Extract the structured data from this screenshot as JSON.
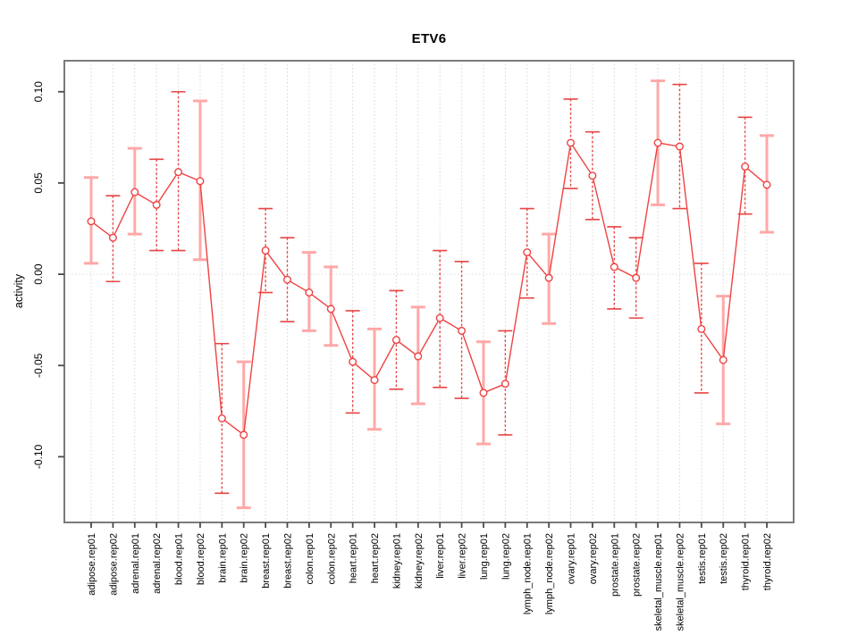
{
  "figure": {
    "title": "ETV6",
    "ylabel": "activity"
  },
  "chart_data": {
    "type": "scatter",
    "subtype": "points-with-error-bars",
    "title": "ETV6",
    "xlabel": "",
    "ylabel": "activity",
    "ylim": [
      -0.136,
      0.117
    ],
    "yticks": [
      -0.1,
      -0.05,
      0.0,
      0.05,
      0.1
    ],
    "ytick_labels": [
      "-0.10",
      "-0.05",
      "0.00",
      "0.05",
      "0.10"
    ],
    "grid": {
      "x_gridlines": "dotted",
      "zero_line": "dotted",
      "legend": "none"
    },
    "categories": [
      "adipose.rep01",
      "adipose.rep02",
      "adrenal.rep01",
      "adrenal.rep02",
      "blood.rep01",
      "blood.rep02",
      "brain.rep01",
      "brain.rep02",
      "breast.rep01",
      "breast.rep02",
      "colon.rep01",
      "colon.rep02",
      "heart.rep01",
      "heart.rep02",
      "kidney.rep01",
      "kidney.rep02",
      "liver.rep01",
      "liver.rep02",
      "lung.rep01",
      "lung.rep02",
      "lymph_node.rep01",
      "lymph_node.rep02",
      "ovary.rep01",
      "ovary.rep02",
      "prostate.rep01",
      "prostate.rep02",
      "skeletal_muscle.rep01",
      "skeletal_muscle.rep02",
      "testis.rep01",
      "testis.rep02",
      "thyroid.rep01",
      "thyroid.rep02"
    ],
    "series": [
      {
        "name": "activity",
        "points": [
          {
            "category": "adipose.rep01",
            "value": 0.029,
            "lo": 0.006,
            "hi": 0.053,
            "bar_style": "solid"
          },
          {
            "category": "adipose.rep02",
            "value": 0.02,
            "lo": -0.004,
            "hi": 0.043,
            "bar_style": "dashed"
          },
          {
            "category": "adrenal.rep01",
            "value": 0.045,
            "lo": 0.022,
            "hi": 0.069,
            "bar_style": "solid"
          },
          {
            "category": "adrenal.rep02",
            "value": 0.038,
            "lo": 0.013,
            "hi": 0.063,
            "bar_style": "dashed"
          },
          {
            "category": "blood.rep01",
            "value": 0.056,
            "lo": 0.013,
            "hi": 0.1,
            "bar_style": "dashed"
          },
          {
            "category": "blood.rep02",
            "value": 0.051,
            "lo": 0.008,
            "hi": 0.095,
            "bar_style": "solid"
          },
          {
            "category": "brain.rep01",
            "value": -0.079,
            "lo": -0.12,
            "hi": -0.038,
            "bar_style": "dashed"
          },
          {
            "category": "brain.rep02",
            "value": -0.088,
            "lo": -0.128,
            "hi": -0.048,
            "bar_style": "solid"
          },
          {
            "category": "breast.rep01",
            "value": 0.013,
            "lo": -0.01,
            "hi": 0.036,
            "bar_style": "dashed"
          },
          {
            "category": "breast.rep02",
            "value": -0.003,
            "lo": -0.026,
            "hi": 0.02,
            "bar_style": "dashed"
          },
          {
            "category": "colon.rep01",
            "value": -0.01,
            "lo": -0.031,
            "hi": 0.012,
            "bar_style": "solid"
          },
          {
            "category": "colon.rep02",
            "value": -0.019,
            "lo": -0.039,
            "hi": 0.004,
            "bar_style": "solid"
          },
          {
            "category": "heart.rep01",
            "value": -0.048,
            "lo": -0.076,
            "hi": -0.02,
            "bar_style": "dashed"
          },
          {
            "category": "heart.rep02",
            "value": -0.058,
            "lo": -0.085,
            "hi": -0.03,
            "bar_style": "solid"
          },
          {
            "category": "kidney.rep01",
            "value": -0.036,
            "lo": -0.063,
            "hi": -0.009,
            "bar_style": "dashed"
          },
          {
            "category": "kidney.rep02",
            "value": -0.045,
            "lo": -0.071,
            "hi": -0.018,
            "bar_style": "solid"
          },
          {
            "category": "liver.rep01",
            "value": -0.024,
            "lo": -0.062,
            "hi": 0.013,
            "bar_style": "dashed"
          },
          {
            "category": "liver.rep02",
            "value": -0.031,
            "lo": -0.068,
            "hi": 0.007,
            "bar_style": "dashed"
          },
          {
            "category": "lung.rep01",
            "value": -0.065,
            "lo": -0.093,
            "hi": -0.037,
            "bar_style": "solid"
          },
          {
            "category": "lung.rep02",
            "value": -0.06,
            "lo": -0.088,
            "hi": -0.031,
            "bar_style": "dashed"
          },
          {
            "category": "lymph_node.rep01",
            "value": 0.012,
            "lo": -0.013,
            "hi": 0.036,
            "bar_style": "dashed"
          },
          {
            "category": "lymph_node.rep02",
            "value": -0.002,
            "lo": -0.027,
            "hi": 0.022,
            "bar_style": "solid"
          },
          {
            "category": "ovary.rep01",
            "value": 0.072,
            "lo": 0.047,
            "hi": 0.096,
            "bar_style": "dashed"
          },
          {
            "category": "ovary.rep02",
            "value": 0.054,
            "lo": 0.03,
            "hi": 0.078,
            "bar_style": "dashed"
          },
          {
            "category": "prostate.rep01",
            "value": 0.004,
            "lo": -0.019,
            "hi": 0.026,
            "bar_style": "dashed"
          },
          {
            "category": "prostate.rep02",
            "value": -0.002,
            "lo": -0.024,
            "hi": 0.02,
            "bar_style": "dashed"
          },
          {
            "category": "skeletal_muscle.rep01",
            "value": 0.072,
            "lo": 0.038,
            "hi": 0.106,
            "bar_style": "solid"
          },
          {
            "category": "skeletal_muscle.rep02",
            "value": 0.07,
            "lo": 0.036,
            "hi": 0.104,
            "bar_style": "dashed"
          },
          {
            "category": "testis.rep01",
            "value": -0.03,
            "lo": -0.065,
            "hi": 0.006,
            "bar_style": "dashed"
          },
          {
            "category": "testis.rep02",
            "value": -0.047,
            "lo": -0.082,
            "hi": -0.012,
            "bar_style": "solid"
          },
          {
            "category": "thyroid.rep01",
            "value": 0.059,
            "lo": 0.033,
            "hi": 0.086,
            "bar_style": "dashed"
          },
          {
            "category": "thyroid.rep02",
            "value": 0.049,
            "lo": 0.023,
            "hi": 0.076,
            "bar_style": "solid"
          }
        ]
      }
    ],
    "colors": {
      "line": "#ef4242",
      "point_stroke": "#ef4242",
      "point_fill": "#ffffff",
      "errorbar_solid": "#ffa8a8",
      "errorbar_dashed": "#e84444",
      "grid": "#d8d8d8",
      "zero_line": "#dcdcdc",
      "border": "#7a7a7a",
      "tick": "#4a4a4a",
      "text": "#000000"
    }
  }
}
